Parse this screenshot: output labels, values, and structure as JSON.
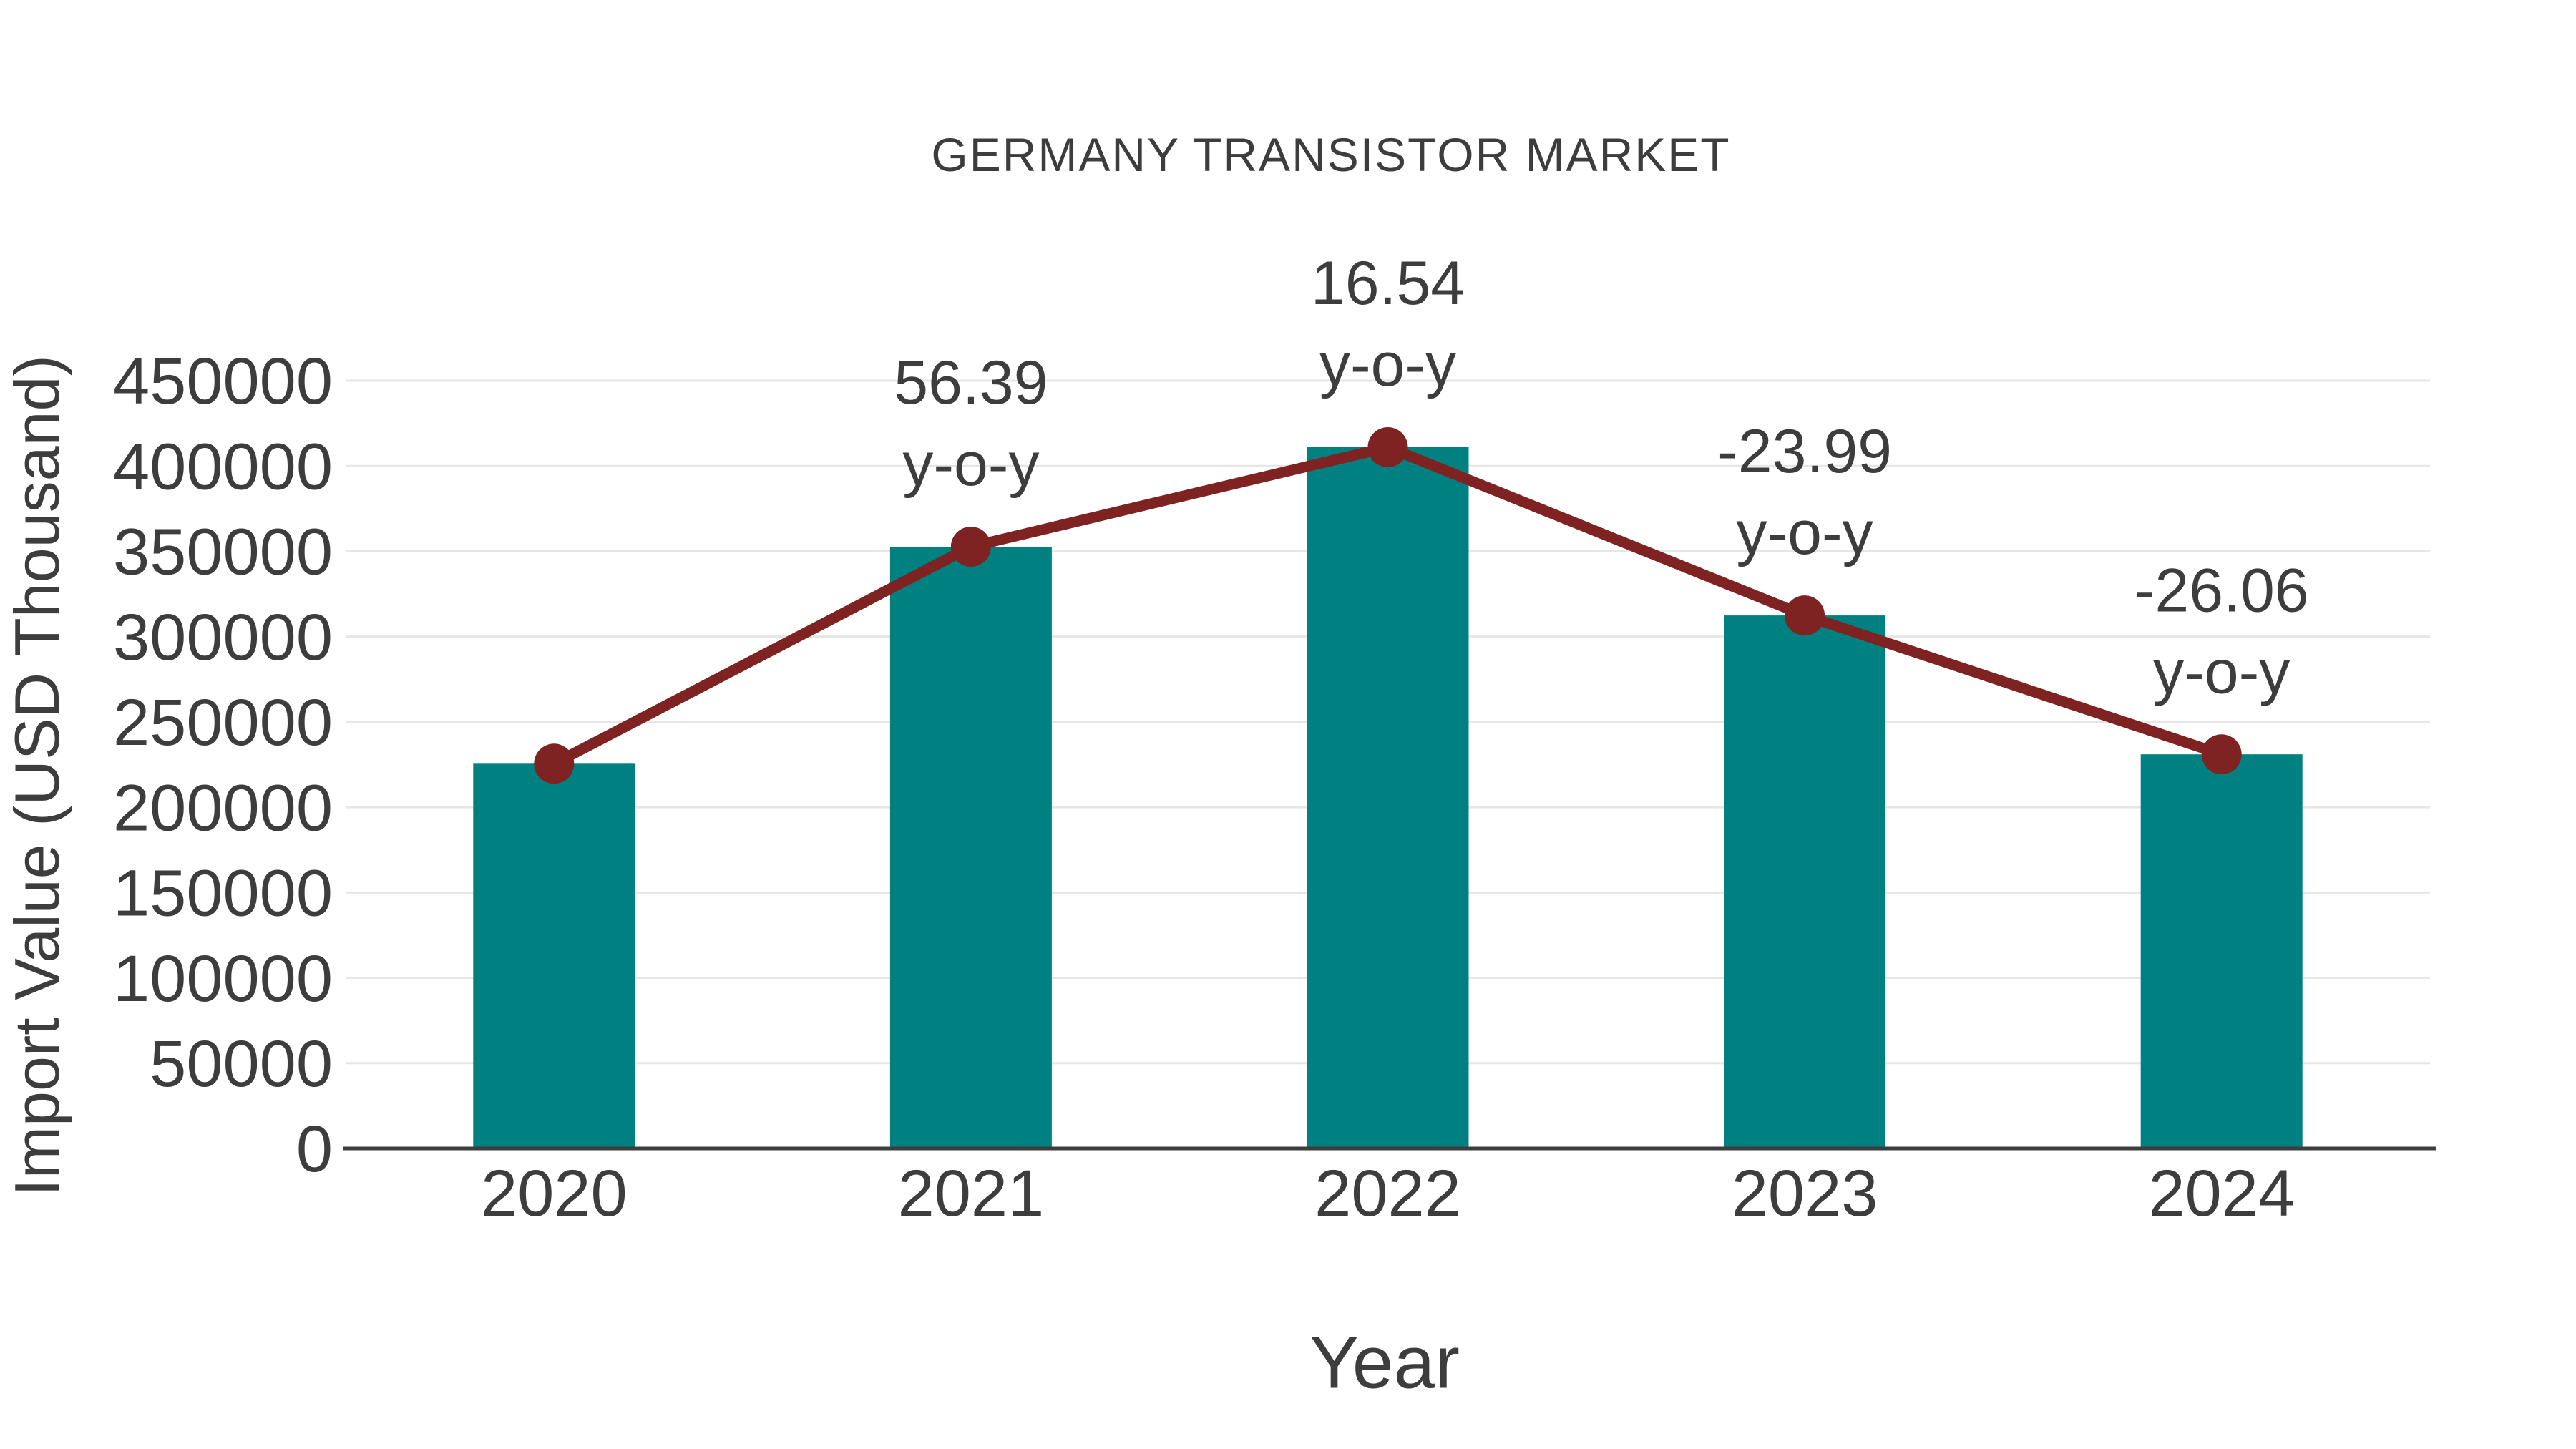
{
  "chart_data": {
    "type": "bar+line",
    "title": "GERMANY TRANSISTOR MARKET",
    "xlabel": "Year",
    "ylabel": "Import Value (USD Thousand)",
    "categories": [
      "2020",
      "2021",
      "2022",
      "2023",
      "2024"
    ],
    "series": [
      {
        "name": "Import Value (USD Thousand)",
        "type": "bar",
        "color": "#008080",
        "values": [
          225500,
          352700,
          411000,
          312400,
          231000
        ]
      },
      {
        "name": "y-o-y trend markers",
        "type": "line",
        "color": "#7E2222",
        "values": [
          225500,
          352700,
          411000,
          312400,
          231000
        ]
      }
    ],
    "yoy_percent": [
      null,
      56.39,
      16.54,
      -23.99,
      -26.06
    ],
    "annotations": {
      "values": [
        "",
        "56.39",
        "16.54",
        "-23.99",
        "-26.06"
      ],
      "suffix": "y-o-y"
    },
    "ylim": [
      0,
      450000
    ],
    "ytick_step": 50000,
    "yticks": [
      0,
      50000,
      100000,
      150000,
      200000,
      250000,
      300000,
      350000,
      400000,
      450000
    ],
    "grid": "horizontal",
    "legend": "none",
    "colors": {
      "bar": "#008080",
      "line": "#7E2222",
      "marker": "#7E2222",
      "text": "#3D3D3D",
      "grid": "#E6E6E6",
      "axis": "#3D3D3D",
      "background": "#FFFFFF"
    }
  }
}
